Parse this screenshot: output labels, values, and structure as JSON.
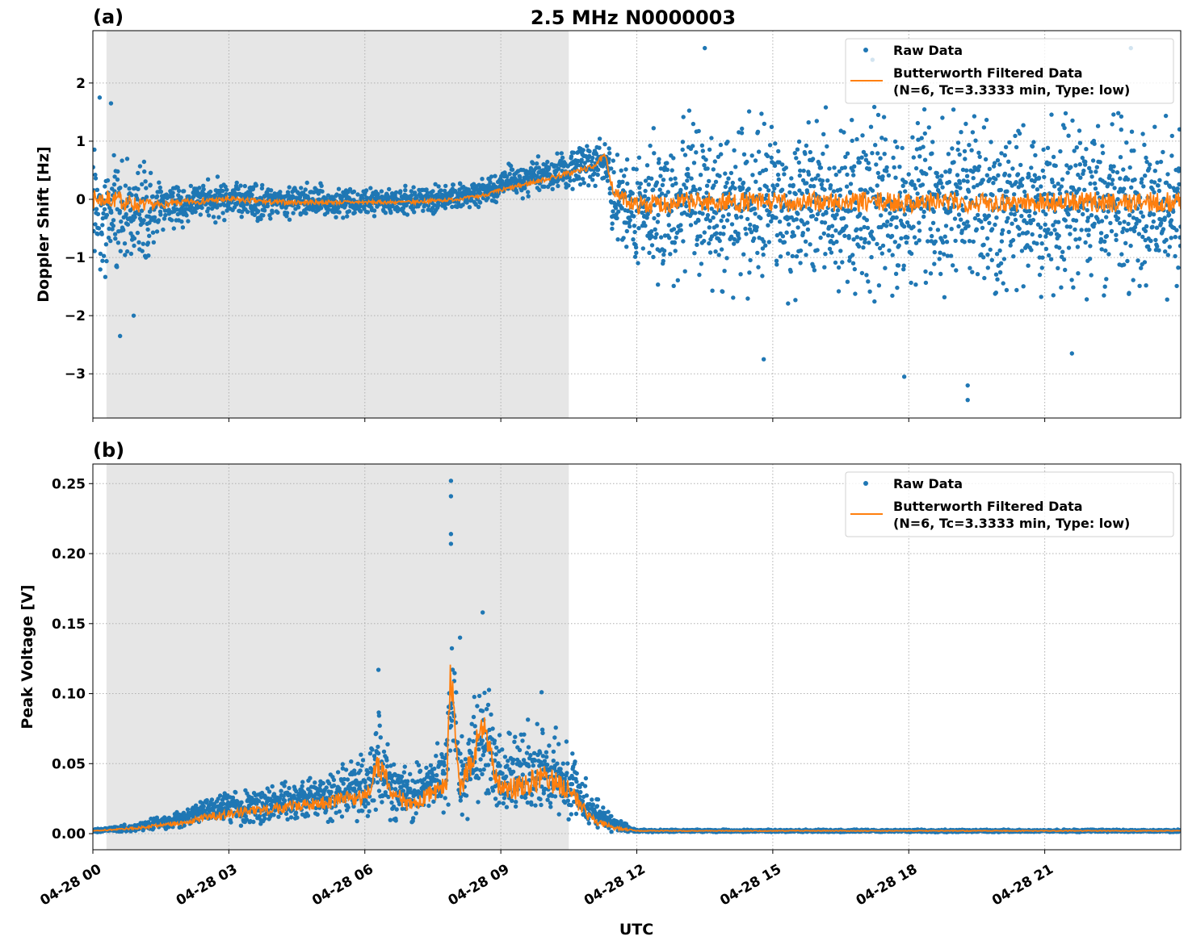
{
  "figure_title": "2.5 MHz N0000003",
  "colors": {
    "raw": "#1f77b4",
    "filtered": "#ff7f0e",
    "shade": "#e6e6e6",
    "grid": "#b0b0b0"
  },
  "chart_data": [
    {
      "panel_label": "(a)",
      "type": "scatter+line",
      "ylabel": "Doppler Shift [Hz]",
      "xlabel": "",
      "x_unit": "hours UTC on 04-28",
      "xlim": [
        0,
        24
      ],
      "ylim": [
        -3.76,
        2.9
      ],
      "yticks": [
        2,
        1,
        0,
        -1,
        -2,
        -3
      ],
      "ytick_labels": [
        "2",
        "1",
        "0",
        "−1",
        "−2",
        "−3"
      ],
      "grid": true,
      "shaded_interval": [
        0.3,
        10.5
      ],
      "legend": {
        "placement": "top-right",
        "entries": [
          "Raw Data",
          "Butterworth Filtered Data",
          "(N=6, Tc=3.3333 min, Type: low)"
        ]
      },
      "series_summary": {
        "t": [
          0,
          0.5,
          1,
          1.5,
          2,
          3,
          4,
          5,
          6,
          7,
          8,
          8.5,
          9,
          10,
          11,
          11.3,
          11.5,
          12,
          13,
          24
        ],
        "filtered": [
          0.0,
          0.0,
          -0.1,
          -0.1,
          -0.05,
          0.0,
          -0.05,
          -0.05,
          -0.05,
          -0.05,
          0.0,
          0.05,
          0.15,
          0.35,
          0.55,
          0.75,
          0.1,
          -0.1,
          -0.05,
          -0.05
        ],
        "raw_low": [
          -1.5,
          -1.6,
          -1.5,
          -0.6,
          -0.5,
          -0.4,
          -0.4,
          -0.35,
          -0.3,
          -0.3,
          -0.2,
          -0.15,
          -0.1,
          0.1,
          0.2,
          0.3,
          -0.8,
          -1.4,
          -1.8,
          -1.8
        ],
        "raw_high": [
          1.2,
          1.0,
          0.8,
          0.4,
          0.4,
          0.4,
          0.35,
          0.3,
          0.2,
          0.25,
          0.3,
          0.35,
          0.6,
          0.8,
          1.0,
          1.1,
          0.9,
          1.1,
          1.6,
          1.6
        ]
      },
      "outliers": [
        [
          0.15,
          1.75
        ],
        [
          0.4,
          1.65
        ],
        [
          0.6,
          -2.35
        ],
        [
          0.9,
          -2.0
        ],
        [
          13.5,
          2.6
        ],
        [
          14.8,
          -2.75
        ],
        [
          19.3,
          -3.45
        ],
        [
          19.3,
          -3.2
        ],
        [
          17.9,
          -3.05
        ],
        [
          22.9,
          2.6
        ],
        [
          17.2,
          2.4
        ],
        [
          21.6,
          -2.65
        ]
      ]
    },
    {
      "panel_label": "(b)",
      "type": "scatter+line",
      "ylabel": "Peak Voltage [V]",
      "xlabel": "UTC",
      "xlim": [
        0,
        24
      ],
      "ylim": [
        -0.0115,
        0.264
      ],
      "yticks": [
        0.25,
        0.2,
        0.15,
        0.1,
        0.05,
        0.0
      ],
      "ytick_labels": [
        "0.25",
        "0.20",
        "0.15",
        "0.10",
        "0.05",
        "0.00"
      ],
      "xtick_labels": [
        "04-28 00",
        "04-28 03",
        "04-28 06",
        "04-28 09",
        "04-28 12",
        "04-28 15",
        "04-28 18",
        "04-28 21"
      ],
      "xticks": [
        0,
        3,
        6,
        9,
        12,
        15,
        18,
        21
      ],
      "grid": true,
      "shaded_interval": [
        0.3,
        10.5
      ],
      "legend": {
        "placement": "top-right",
        "entries": [
          "Raw Data",
          "Butterworth Filtered Data",
          "(N=6, Tc=3.3333 min, Type: low)"
        ]
      },
      "series_summary": {
        "t": [
          0,
          1,
          2,
          2.5,
          3,
          4,
          5,
          6,
          6.3,
          6.6,
          7,
          7.8,
          7.9,
          8.1,
          8.6,
          9,
          9.5,
          10,
          10.5,
          11,
          11.5,
          12,
          24
        ],
        "filtered": [
          0.002,
          0.004,
          0.008,
          0.012,
          0.014,
          0.018,
          0.022,
          0.026,
          0.05,
          0.03,
          0.02,
          0.035,
          0.12,
          0.03,
          0.075,
          0.03,
          0.035,
          0.04,
          0.03,
          0.01,
          0.004,
          0.002,
          0.002
        ],
        "raw_low": [
          0.001,
          0.001,
          0.003,
          0.004,
          0.005,
          0.006,
          0.007,
          0.008,
          0.01,
          0.008,
          0.007,
          0.01,
          0.03,
          0.008,
          0.01,
          0.008,
          0.009,
          0.008,
          0.006,
          0.003,
          0.001,
          0.001,
          0.001
        ],
        "raw_high": [
          0.003,
          0.008,
          0.018,
          0.028,
          0.032,
          0.038,
          0.045,
          0.06,
          0.09,
          0.06,
          0.05,
          0.07,
          0.18,
          0.065,
          0.12,
          0.07,
          0.085,
          0.08,
          0.07,
          0.03,
          0.012,
          0.003,
          0.003
        ]
      },
      "outliers": [
        [
          7.9,
          0.252
        ],
        [
          7.9,
          0.241
        ],
        [
          7.9,
          0.214
        ],
        [
          7.9,
          0.207
        ],
        [
          6.3,
          0.117
        ],
        [
          8.6,
          0.158
        ],
        [
          8.1,
          0.14
        ],
        [
          9.9,
          0.101
        ]
      ]
    }
  ]
}
